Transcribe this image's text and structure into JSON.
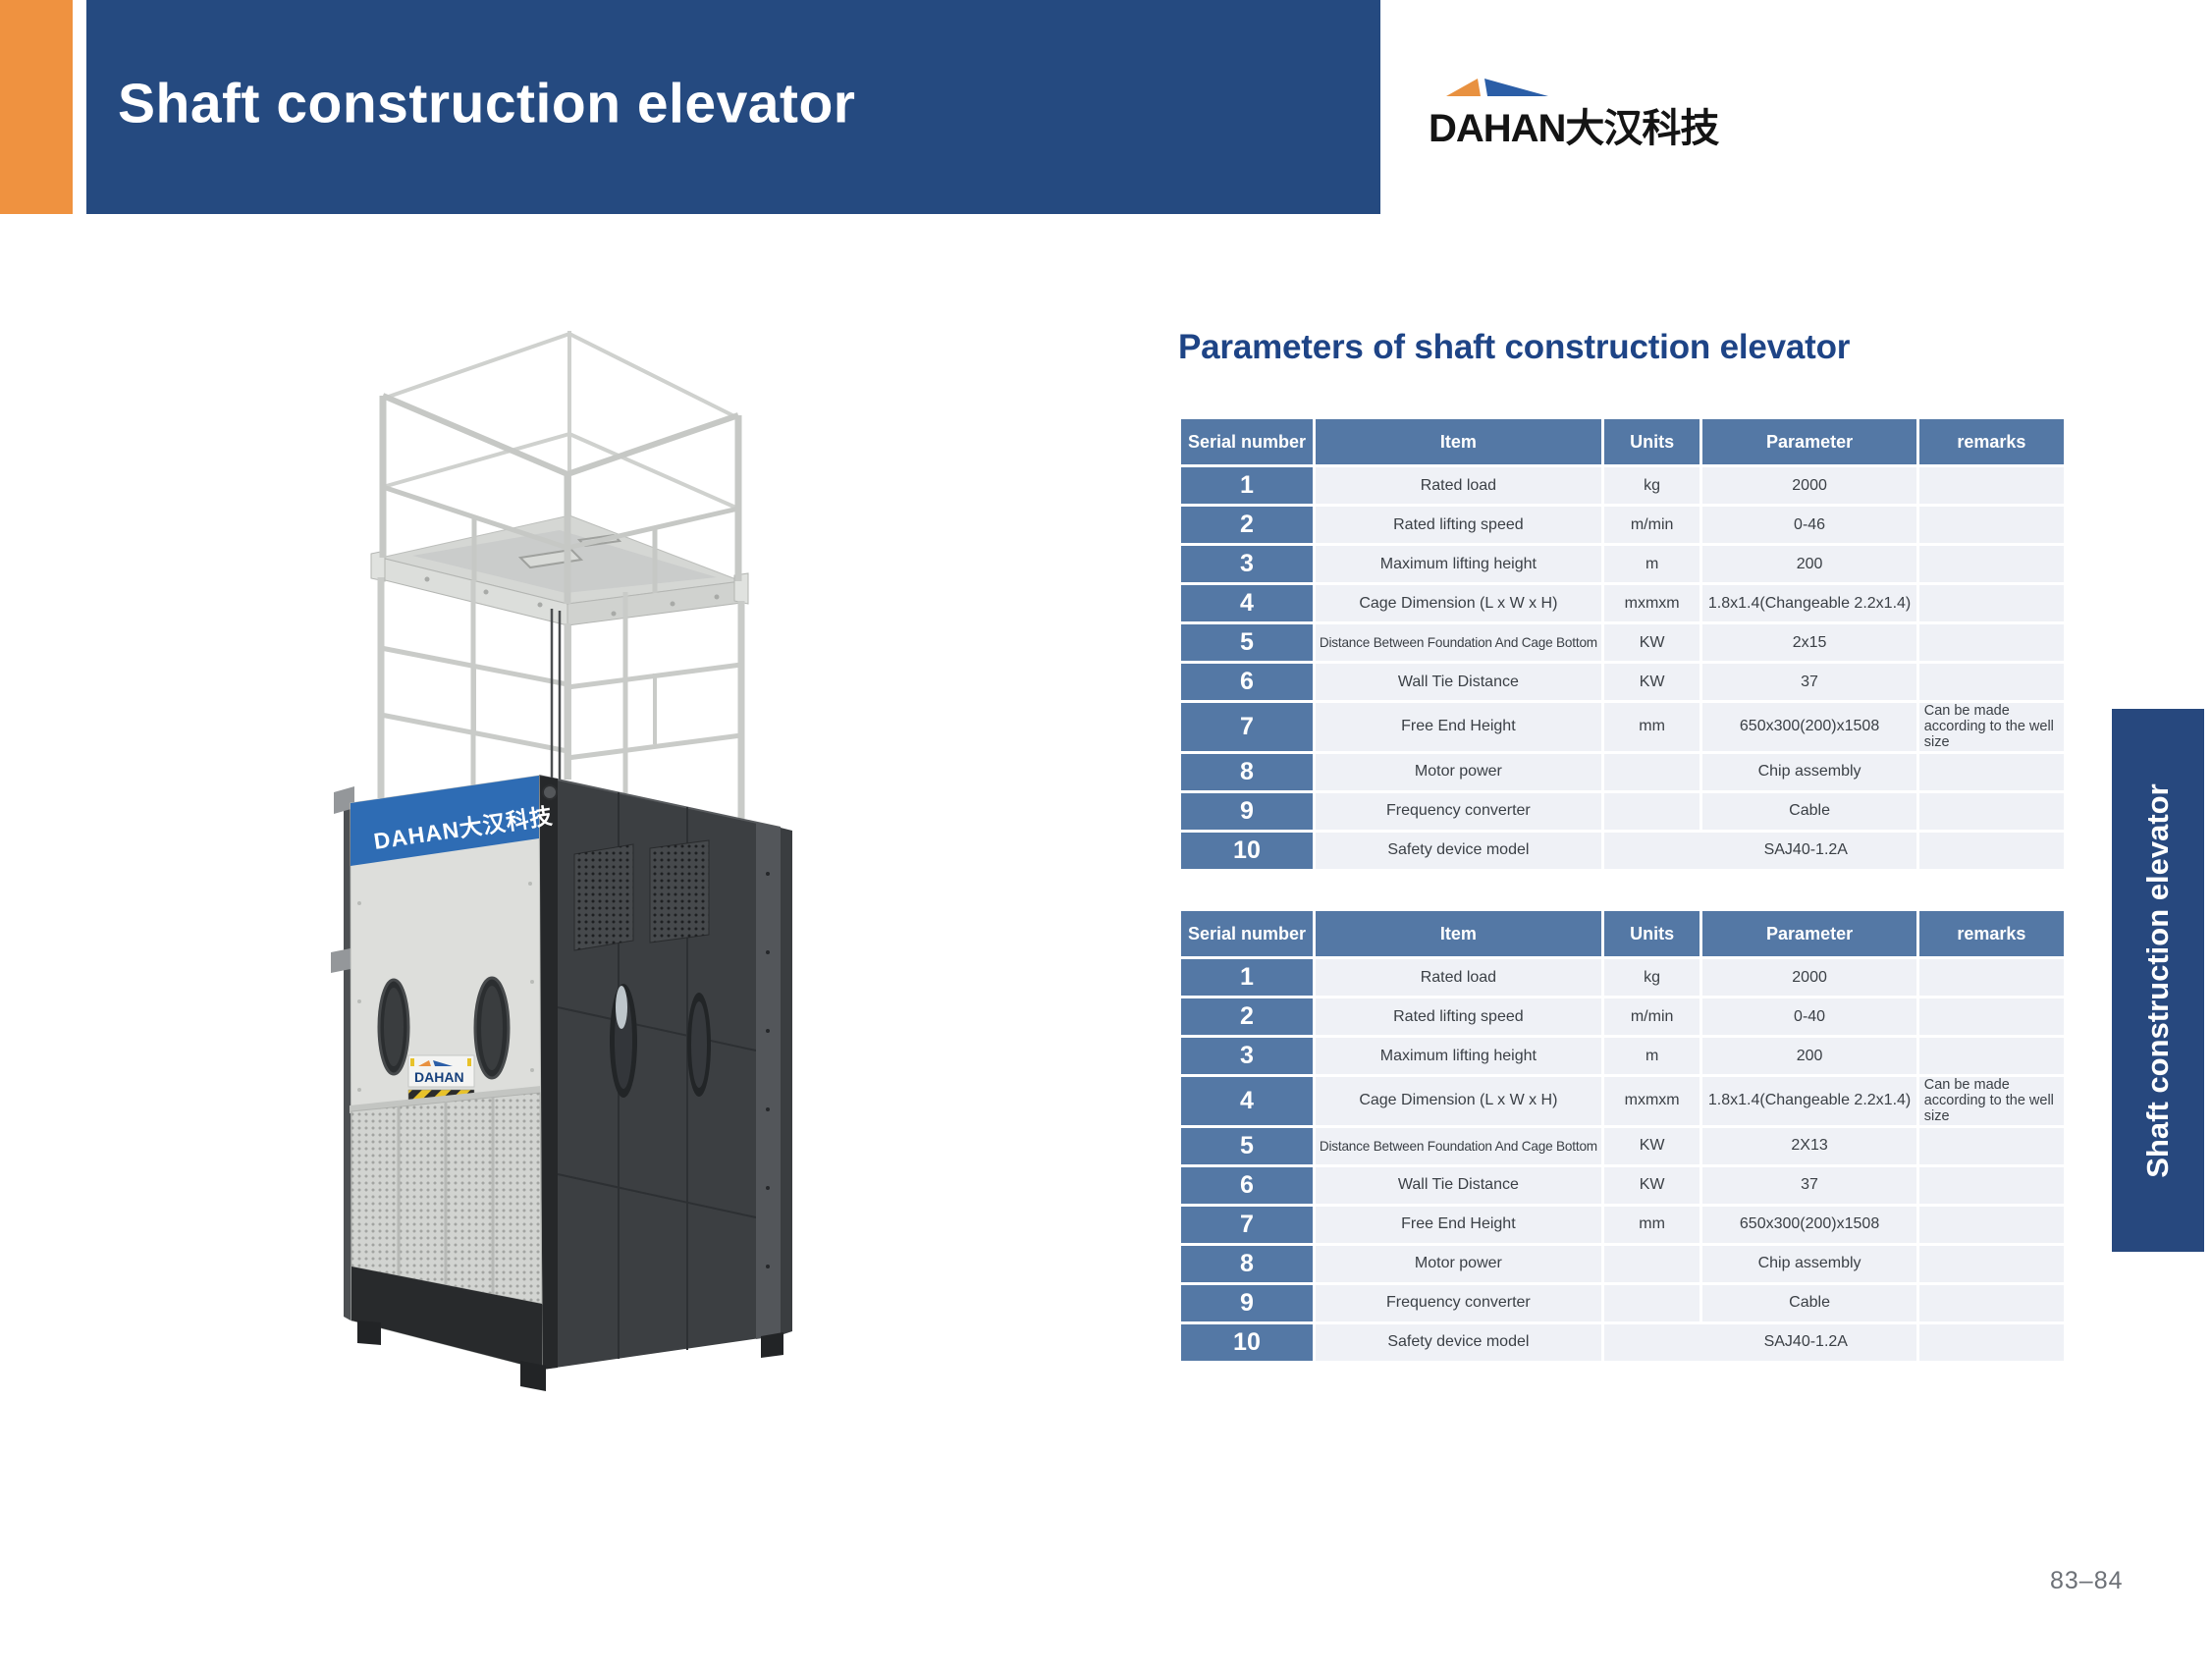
{
  "header": {
    "title": "Shaft construction elevator"
  },
  "logo": {
    "text": "DAHAN大汉科技"
  },
  "section": {
    "title": "Parameters of shaft construction elevator"
  },
  "side_tab": {
    "label": "Shaft construction elevator"
  },
  "page": {
    "number": "83–84"
  },
  "product_image": {
    "cabin_banner_text": "DAHAN大汉科技",
    "cabin_plate_text": "DAHAN"
  },
  "colors": {
    "accent_orange": "#ef9240",
    "banner_blue": "#254a80",
    "title_blue": "#1e4486",
    "table_header_blue": "#5478a5",
    "table_row_bg": "#eff1f6",
    "side_tab_blue": "#27487e",
    "cabin_banner_blue": "#2e6cb4",
    "logo_roof_orange": "#e89140",
    "logo_roof_blue": "#2b5ea7"
  },
  "tables": [
    {
      "columns": [
        "Serial number",
        "Item",
        "Units",
        "Parameter",
        "remarks"
      ],
      "rows": [
        {
          "serial": "1",
          "item": "Rated load",
          "units": "kg",
          "parameter": "2000",
          "remarks": ""
        },
        {
          "serial": "2",
          "item": "Rated lifting speed",
          "units": "m/min",
          "parameter": "0-46",
          "remarks": ""
        },
        {
          "serial": "3",
          "item": "Maximum lifting height",
          "units": "m",
          "parameter": "200",
          "remarks": ""
        },
        {
          "serial": "4",
          "item": "Cage Dimension (L x W x H)",
          "units": "mxmxm",
          "parameter": "1.8x1.4(Changeable 2.2x1.4)",
          "remarks": ""
        },
        {
          "serial": "5",
          "item": "Distance Between Foundation And Cage Bottom",
          "units": "KW",
          "parameter": "2x15",
          "remarks": ""
        },
        {
          "serial": "6",
          "item": "Wall Tie Distance",
          "units": "KW",
          "parameter": "37",
          "remarks": ""
        },
        {
          "serial": "7",
          "item": "Free End Height",
          "units": "mm",
          "parameter": "650x300(200)x1508",
          "remarks": "Can be made according to the well size"
        },
        {
          "serial": "8",
          "item": "Motor power",
          "units": "",
          "parameter": "Chip assembly",
          "remarks": ""
        },
        {
          "serial": "9",
          "item": "Frequency converter",
          "units": "",
          "parameter": "Cable",
          "remarks": ""
        },
        {
          "serial": "10",
          "item": "Safety device model",
          "units": "",
          "parameter": "SAJ40-1.2A",
          "remarks": "",
          "merge_units_parameter": true
        }
      ]
    },
    {
      "columns": [
        "Serial number",
        "Item",
        "Units",
        "Parameter",
        "remarks"
      ],
      "rows": [
        {
          "serial": "1",
          "item": "Rated load",
          "units": "kg",
          "parameter": "2000",
          "remarks": ""
        },
        {
          "serial": "2",
          "item": "Rated lifting speed",
          "units": "m/min",
          "parameter": "0-40",
          "remarks": ""
        },
        {
          "serial": "3",
          "item": "Maximum lifting height",
          "units": "m",
          "parameter": "200",
          "remarks": ""
        },
        {
          "serial": "4",
          "item": "Cage Dimension (L x W x H)",
          "units": "mxmxm",
          "parameter": "1.8x1.4(Changeable 2.2x1.4)",
          "remarks": "Can be made according to the well size"
        },
        {
          "serial": "5",
          "item": "Distance Between Foundation And Cage Bottom",
          "units": "KW",
          "parameter": "2X13",
          "remarks": ""
        },
        {
          "serial": "6",
          "item": "Wall Tie Distance",
          "units": "KW",
          "parameter": "37",
          "remarks": ""
        },
        {
          "serial": "7",
          "item": "Free End Height",
          "units": "mm",
          "parameter": "650x300(200)x1508",
          "remarks": ""
        },
        {
          "serial": "8",
          "item": "Motor power",
          "units": "",
          "parameter": "Chip assembly",
          "remarks": ""
        },
        {
          "serial": "9",
          "item": "Frequency converter",
          "units": "",
          "parameter": "Cable",
          "remarks": ""
        },
        {
          "serial": "10",
          "item": "Safety device model",
          "units": "",
          "parameter": "SAJ40-1.2A",
          "remarks": "",
          "merge_units_parameter": true
        }
      ]
    }
  ]
}
